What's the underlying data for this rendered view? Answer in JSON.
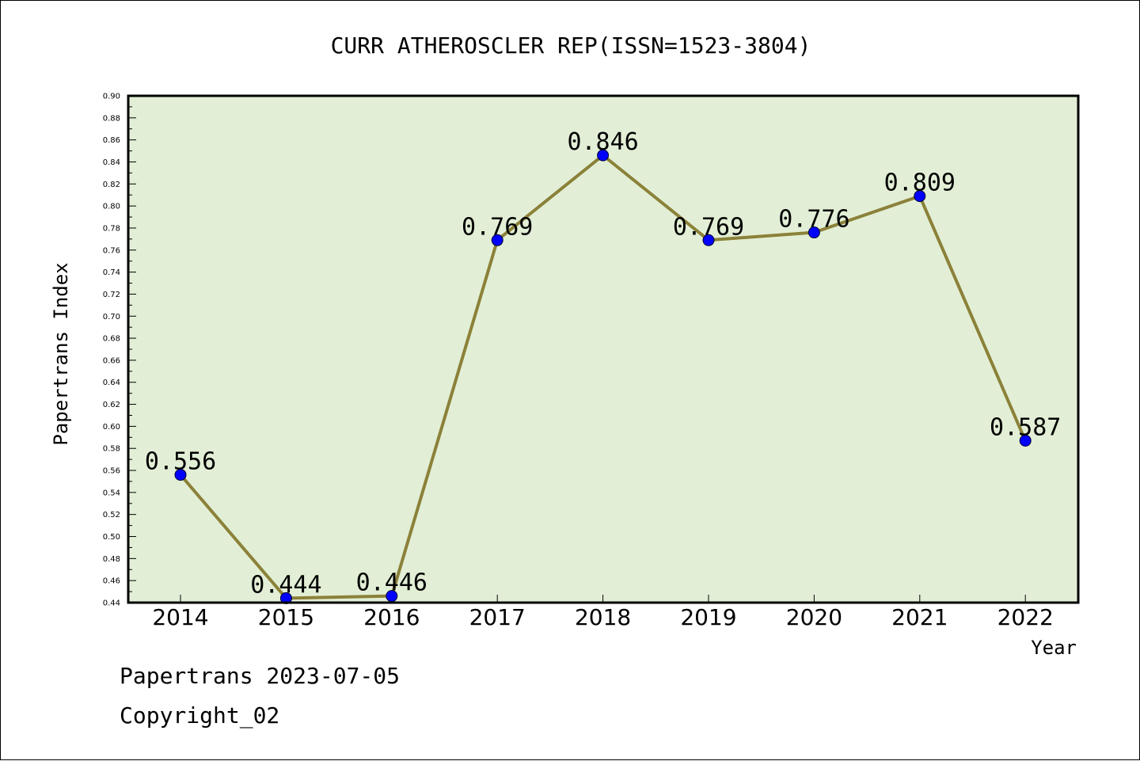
{
  "chart_data": {
    "type": "line",
    "title": "CURR ATHEROSCLER REP(ISSN=1523-3804)",
    "xlabel": "Year",
    "ylabel": "Papertrans Index",
    "categories": [
      "2014",
      "2015",
      "2016",
      "2017",
      "2018",
      "2019",
      "2020",
      "2021",
      "2022"
    ],
    "values": [
      0.556,
      0.444,
      0.446,
      0.769,
      0.846,
      0.769,
      0.776,
      0.809,
      0.587
    ],
    "data_labels": [
      "0.556",
      "0.444",
      "0.446",
      "0.769",
      "0.846",
      "0.769",
      "0.776",
      "0.809",
      "0.587"
    ],
    "ylim": [
      0.44,
      0.9
    ],
    "yticks": [
      "0.44",
      "0.46",
      "0.48",
      "0.50",
      "0.52",
      "0.54",
      "0.56",
      "0.58",
      "0.60",
      "0.62",
      "0.64",
      "0.66",
      "0.68",
      "0.70",
      "0.72",
      "0.74",
      "0.76",
      "0.78",
      "0.80",
      "0.82",
      "0.84",
      "0.86",
      "0.88",
      "0.90"
    ],
    "grid": false,
    "colors": {
      "plot_background": "#e2efd6",
      "line": "#8b8139",
      "marker": "#0000ff"
    }
  },
  "footer": {
    "source": "Papertrans 2023-07-05",
    "copyright": "Copyright_02"
  }
}
